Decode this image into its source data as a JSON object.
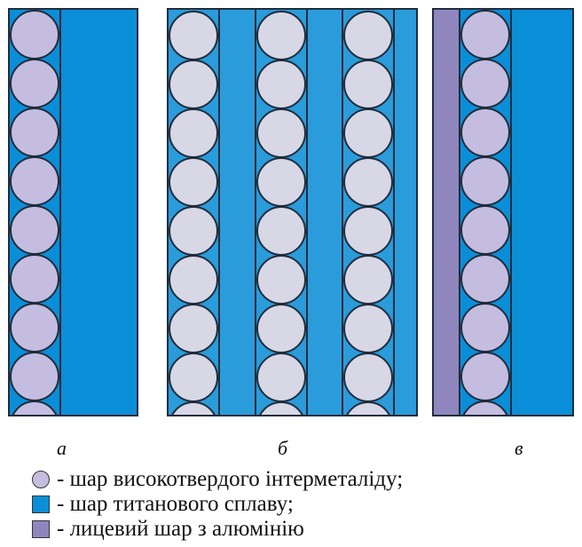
{
  "colors": {
    "intermetallic": "#c5bde0",
    "titanium": "#0b8ed8",
    "titanium_strip": "#2a9cdb",
    "aluminium": "#8f86be",
    "outline": "#1f2d3d"
  },
  "panels": [
    {
      "id": "a",
      "label": "а"
    },
    {
      "id": "b",
      "label": "б"
    },
    {
      "id": "c",
      "label": "в"
    }
  ],
  "legend": [
    {
      "icon": "circle-swatch-icon",
      "color_key": "intermetallic",
      "text": "- шар високотвердого інтерметаліду;"
    },
    {
      "icon": "blue-square-swatch-icon",
      "color_key": "titanium",
      "text": "- шар титанового сплаву;"
    },
    {
      "icon": "purple-square-swatch-icon",
      "color_key": "aluminium",
      "text": "- лицевий шар з алюмінію"
    }
  ]
}
